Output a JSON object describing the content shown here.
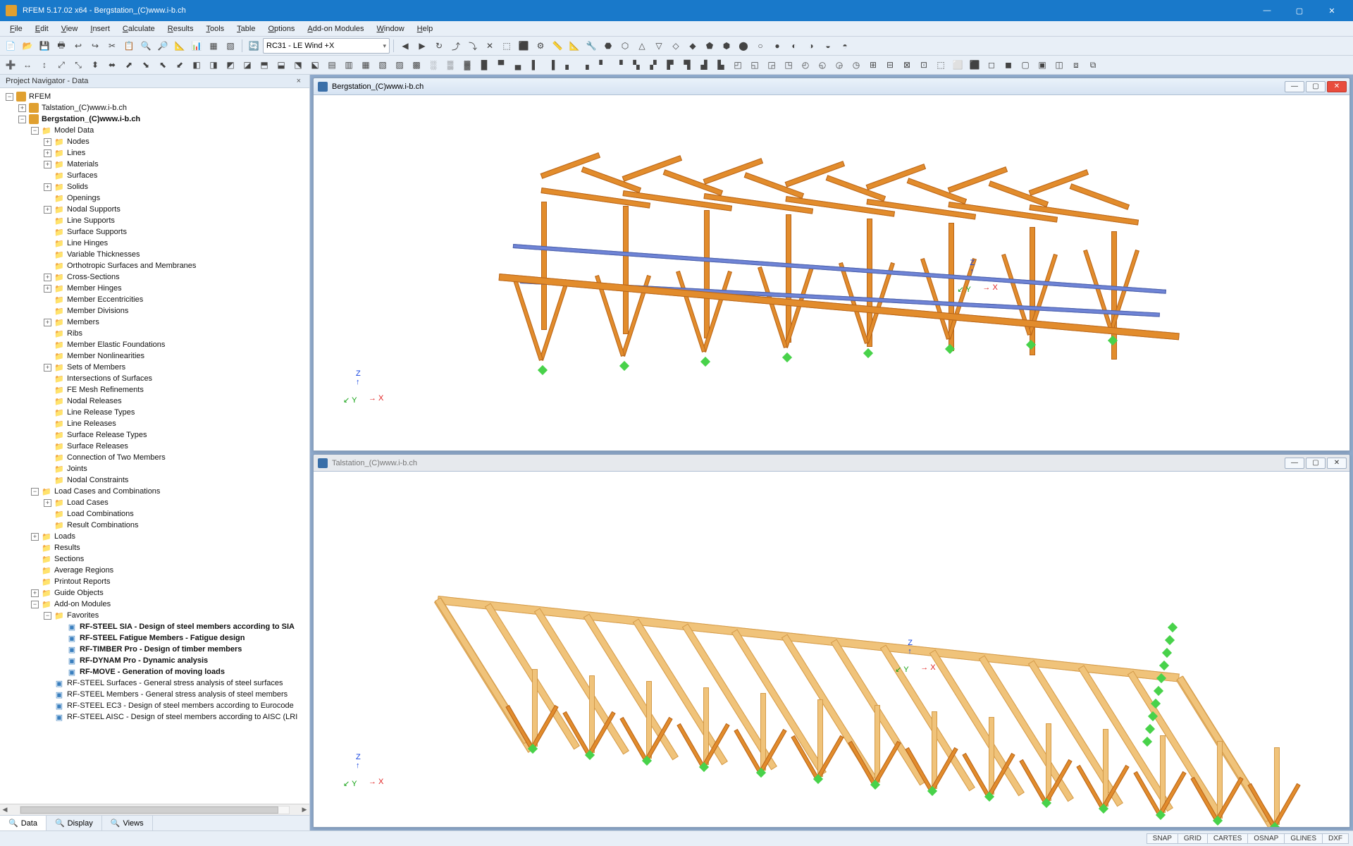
{
  "app": {
    "title": "RFEM 5.17.02 x64 - Bergstation_(C)www.i-b.ch",
    "icon_color": "#e0a030"
  },
  "menu": [
    "File",
    "Edit",
    "View",
    "Insert",
    "Calculate",
    "Results",
    "Tools",
    "Table",
    "Options",
    "Add-on Modules",
    "Window",
    "Help"
  ],
  "combo": {
    "value": "RC31 - LE Wind +X"
  },
  "nav": {
    "title": "Project Navigator - Data",
    "tabs": [
      "Data",
      "Display",
      "Views"
    ],
    "root": "RFEM",
    "projects": [
      {
        "label": "Talstation_(C)www.i-b.ch",
        "bold": false
      },
      {
        "label": "Bergstation_(C)www.i-b.ch",
        "bold": true
      }
    ],
    "modelData": "Model Data",
    "modelItems": [
      "Nodes",
      "Lines",
      "Materials",
      "Surfaces",
      "Solids",
      "Openings",
      "Nodal Supports",
      "Line Supports",
      "Surface Supports",
      "Line Hinges",
      "Variable Thicknesses",
      "Orthotropic Surfaces and Membranes",
      "Cross-Sections",
      "Member Hinges",
      "Member Eccentricities",
      "Member Divisions",
      "Members",
      "Ribs",
      "Member Elastic Foundations",
      "Member Nonlinearities",
      "Sets of Members",
      "Intersections of Surfaces",
      "FE Mesh Refinements",
      "Nodal Releases",
      "Line Release Types",
      "Line Releases",
      "Surface Release Types",
      "Surface Releases",
      "Connection of Two Members",
      "Joints",
      "Nodal Constraints"
    ],
    "loadCases": {
      "label": "Load Cases and Combinations",
      "children": [
        "Load Cases",
        "Load Combinations",
        "Result Combinations"
      ]
    },
    "more": [
      "Loads",
      "Results",
      "Sections",
      "Average Regions",
      "Printout Reports",
      "Guide Objects"
    ],
    "addon": {
      "label": "Add-on Modules",
      "fav": "Favorites",
      "favItems": [
        "RF-STEEL SIA - Design of steel members according to SIA",
        "RF-STEEL Fatigue Members - Fatigue design",
        "RF-TIMBER Pro - Design of timber members",
        "RF-DYNAM Pro - Dynamic analysis",
        "RF-MOVE - Generation of moving loads"
      ],
      "others": [
        "RF-STEEL Surfaces - General stress analysis of steel surfaces",
        "RF-STEEL Members - General stress analysis of steel members",
        "RF-STEEL EC3 - Design of steel members according to Eurocode",
        "RF-STEEL AISC - Design of steel members according to AISC (LRI"
      ]
    }
  },
  "views": [
    {
      "title": "Bergstation_(C)www.i-b.ch",
      "active": true
    },
    {
      "title": "Talstation_(C)www.i-b.ch",
      "active": false
    }
  ],
  "status": [
    "SNAP",
    "GRID",
    "CARTES",
    "OSNAP",
    "GLINES",
    "DXF"
  ],
  "colors": {
    "timber": "#e28c2c",
    "timber_light": "#f0c37a",
    "steel": "#6f84d6",
    "support": "#48d24a",
    "bg_panel": "#8faacc"
  },
  "toolbar_icons_row1": [
    "📄",
    "📂",
    "💾",
    "🖶",
    "↩",
    "↪",
    "✂",
    "📋",
    "🔍",
    "🔎",
    "📐",
    "📊",
    "▦",
    "▧"
  ],
  "toolbar_icons_row1b": [
    "◀",
    "▶",
    "↻",
    "⤴",
    "⤵",
    "✕",
    "⬚",
    "⬛",
    "⚙",
    "📏",
    "📐",
    "🔧",
    "⬣",
    "⬡",
    "△",
    "▽",
    "◇",
    "◆",
    "⬟",
    "⬢",
    "⬤",
    "○",
    "●",
    "◐",
    "◑",
    "◒",
    "◓"
  ],
  "toolbar_icons_row2": [
    "➕",
    "↔",
    "↕",
    "⤢",
    "⤡",
    "⬍",
    "⬌",
    "⬈",
    "⬊",
    "⬉",
    "⬋",
    "◧",
    "◨",
    "◩",
    "◪",
    "⬒",
    "⬓",
    "⬔",
    "⬕",
    "▤",
    "▥",
    "▦",
    "▧",
    "▨",
    "▩",
    "░",
    "▒",
    "▓",
    "█",
    "▀",
    "▄",
    "▌",
    "▐",
    "▖",
    "▗",
    "▘",
    "▝",
    "▚",
    "▞",
    "▛",
    "▜",
    "▟",
    "▙",
    "◰",
    "◱",
    "◲",
    "◳",
    "◴",
    "◵",
    "◶",
    "◷",
    "⊞",
    "⊟",
    "⊠",
    "⊡",
    "⬚",
    "⬜",
    "⬛",
    "◻",
    "◼",
    "▢",
    "▣",
    "◫",
    "⧈",
    "⧉"
  ]
}
